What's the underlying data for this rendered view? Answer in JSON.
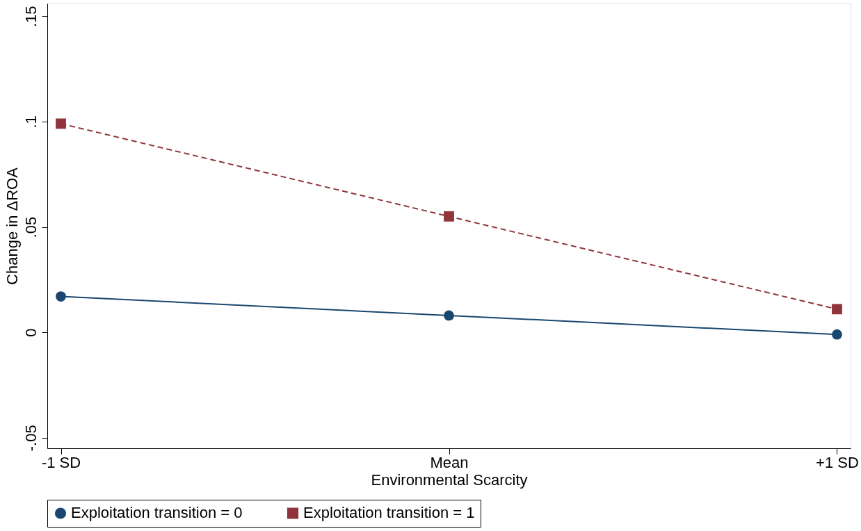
{
  "chart_data": {
    "type": "line",
    "xlabel": "Environmental Scarcity",
    "ylabel": "Change in ΔROA",
    "categories": [
      "-1 SD",
      "Mean",
      "+1 SD"
    ],
    "series": [
      {
        "name": "Exploitation transition = 0",
        "color": "#1a476f",
        "values": [
          0.017,
          0.008,
          -0.001
        ],
        "marker": "circle",
        "line_style": "solid"
      },
      {
        "name": "Exploitation transition = 1",
        "color": "#90353b",
        "values": [
          0.099,
          0.055,
          0.011
        ],
        "marker": "square",
        "line_style": "dashed"
      }
    ],
    "ylim": [
      -0.055,
      0.156
    ],
    "yticks": [
      {
        "value": -0.05,
        "label": "-.05"
      },
      {
        "value": 0,
        "label": "0"
      },
      {
        "value": 0.05,
        "label": ".05"
      },
      {
        "value": 0.1,
        "label": ".1"
      },
      {
        "value": 0.15,
        "label": ".15"
      }
    ],
    "grid": false,
    "legend": "bottom"
  }
}
